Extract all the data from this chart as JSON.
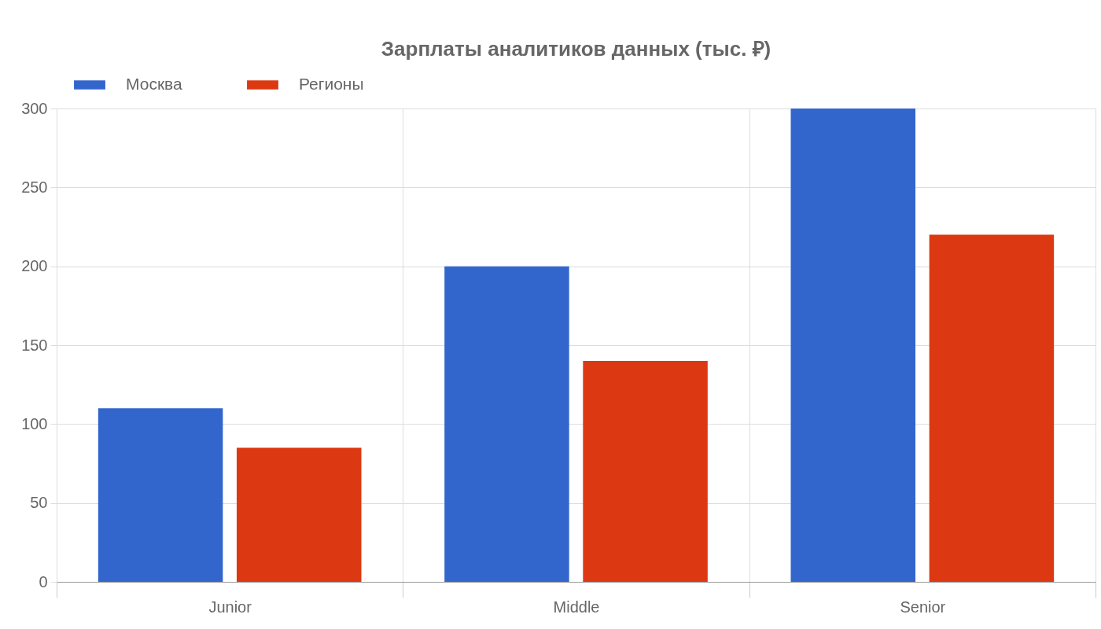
{
  "chart_data": {
    "type": "bar",
    "title": "Зарплаты аналитиков данных (тыс. ₽)",
    "categories": [
      "Junior",
      "Middle",
      "Senior"
    ],
    "series": [
      {
        "name": "Москва",
        "color": "#3366cc",
        "values": [
          110,
          200,
          300
        ]
      },
      {
        "name": "Регионы",
        "color": "#dc3912",
        "values": [
          85,
          140,
          220
        ]
      }
    ],
    "ylim": [
      0,
      300
    ],
    "yticks": [
      0,
      50,
      100,
      150,
      200,
      250,
      300
    ],
    "grid": true,
    "legend": "top"
  }
}
